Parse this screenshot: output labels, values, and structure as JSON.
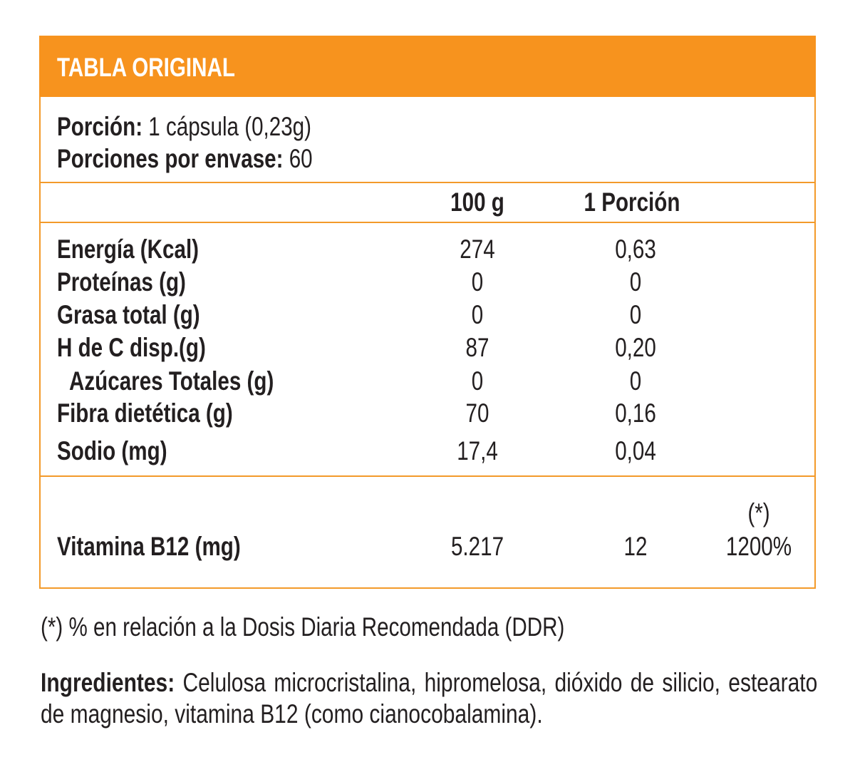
{
  "header": {
    "title": "TABLA ORIGINAL"
  },
  "serving": {
    "label": "Porción:",
    "value": "1 cápsula (0,23g)"
  },
  "servings_per_container": {
    "label": "Porciones por envase:",
    "value": "60"
  },
  "columns": [
    "100 g",
    "1 Porción"
  ],
  "rows": [
    [
      "Energía (Kcal)",
      "274",
      "0,63"
    ],
    [
      "Proteínas (g)",
      "0",
      "0"
    ],
    [
      "Grasa total (g)",
      "0",
      "0"
    ],
    [
      "H de C disp.(g)",
      "87",
      "0,20"
    ],
    [
      "Azúcares Totales (g)",
      "0",
      "0"
    ],
    [
      "Fibra dietética (g)",
      "70",
      "0,16"
    ],
    [
      "Sodio (mg)",
      "17,4",
      "0,04"
    ]
  ],
  "vitamin": {
    "name": "Vitamina B12 (mg)",
    "per_100g": "5.217",
    "per_portion": "12",
    "ddr_mark": "(*)",
    "ddr": "1200%"
  },
  "footnote": "(*) % en relación a la Dosis Diaria Recomendada (DDR)",
  "ingredients": {
    "label": "Ingredientes:",
    "text": "Celulosa microcristalina, hipromelosa, dióxido de silicio, estearato de magnesio, vitamina B12 (como cianocobalamina)."
  }
}
